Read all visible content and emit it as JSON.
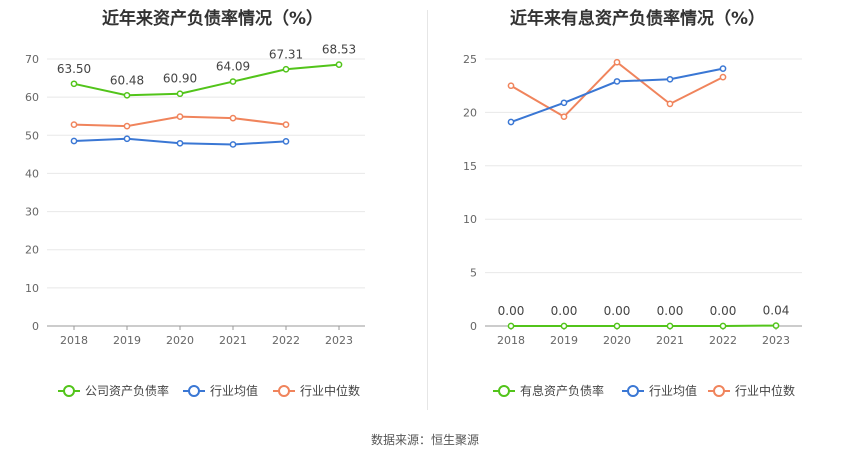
{
  "chart_data": [
    {
      "type": "line",
      "title": "近年来资产负债率情况（%）",
      "categories": [
        "2018",
        "2019",
        "2020",
        "2021",
        "2022",
        "2023"
      ],
      "ylim": [
        0,
        70
      ],
      "yticks": [
        0,
        10,
        20,
        30,
        40,
        50,
        60,
        70
      ],
      "grid": true,
      "legend_position": "bottom",
      "series": [
        {
          "name": "公司资产负债率",
          "color": "#52c41a",
          "values": [
            63.5,
            60.48,
            60.9,
            64.09,
            67.31,
            68.53
          ],
          "labels": [
            "63.50",
            "60.48",
            "60.90",
            "64.09",
            "67.31",
            "68.53"
          ]
        },
        {
          "name": "行业均值",
          "color": "#3a77d4",
          "values": [
            48.5,
            49.1,
            47.9,
            47.6,
            48.4,
            null
          ]
        },
        {
          "name": "行业中位数",
          "color": "#f0845c",
          "values": [
            52.8,
            52.4,
            54.9,
            54.5,
            52.8,
            null
          ]
        }
      ]
    },
    {
      "type": "line",
      "title": "近年来有息资产负债率情况（%）",
      "categories": [
        "2018",
        "2019",
        "2020",
        "2021",
        "2022",
        "2023"
      ],
      "ylim": [
        0,
        25
      ],
      "yticks": [
        0,
        5,
        10,
        15,
        20,
        25
      ],
      "grid": true,
      "legend_position": "bottom",
      "series": [
        {
          "name": "有息资产负债率",
          "color": "#52c41a",
          "values": [
            0.0,
            0.0,
            0.0,
            0.0,
            0.0,
            0.04
          ],
          "labels": [
            "0.00",
            "0.00",
            "0.00",
            "0.00",
            "0.00",
            "0.04"
          ]
        },
        {
          "name": "行业均值",
          "color": "#3a77d4",
          "values": [
            19.1,
            20.9,
            22.9,
            23.1,
            24.1,
            null
          ]
        },
        {
          "name": "行业中位数",
          "color": "#f0845c",
          "values": [
            22.5,
            19.6,
            24.7,
            20.8,
            23.3,
            null
          ]
        }
      ]
    }
  ],
  "footer": "数据来源：恒生聚源"
}
